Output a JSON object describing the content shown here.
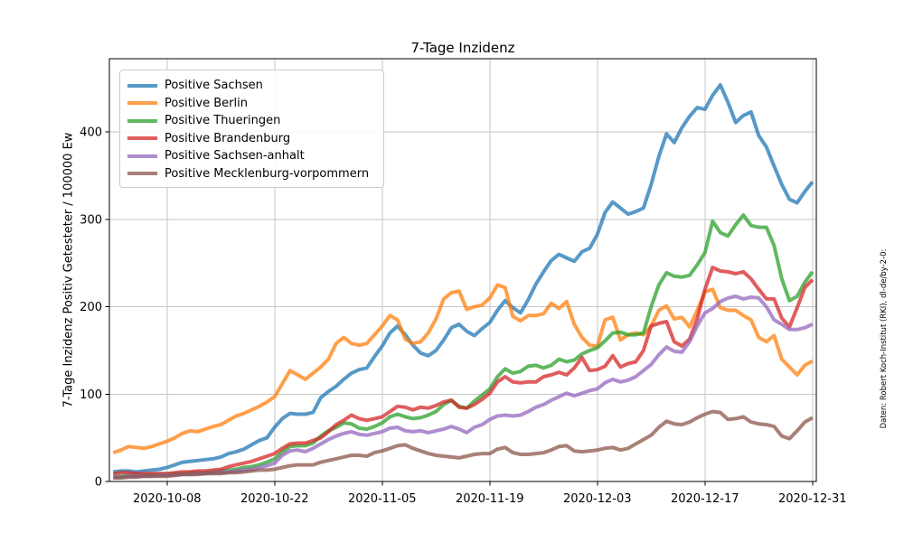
{
  "figure": {
    "title": "7-Tage Inzidenz",
    "ylabel": "7-Tage Inzidenz Positiv Getesteter / 100000 Ew",
    "watermark": "Daten: Robert Koch-Institut (RKI), dl-de/by-2-0:",
    "background_color": "#ffffff",
    "grid_color": "#c6c6c6",
    "spine_color": "#000000"
  },
  "chart_data": {
    "type": "line",
    "title": "7-Tage Inzidenz",
    "xlabel": "",
    "ylabel": "7-Tage Inzidenz Positiv Getesteter / 100000 Ew",
    "x_unit": "day",
    "x_start_date": "2020-10-01",
    "x_tick_days": [
      7,
      21,
      35,
      49,
      63,
      77,
      91
    ],
    "x_tick_labels": [
      "2020-10-08",
      "2020-10-22",
      "2020-11-05",
      "2020-11-19",
      "2020-12-03",
      "2020-12-17",
      "2020-12-31"
    ],
    "y_ticks": [
      0,
      100,
      200,
      300,
      400
    ],
    "ylim": [
      0,
      484
    ],
    "xlim_days": [
      -0.5,
      91.5
    ],
    "grid": true,
    "legend_position": "upper left",
    "line_width": 4,
    "line_alpha": 0.75,
    "series": [
      {
        "name": "Positive Sachsen",
        "color": "#1f77b4",
        "values": [
          11,
          12,
          12,
          11,
          12,
          13,
          14,
          16,
          19,
          22,
          23,
          24,
          25,
          26,
          28,
          32,
          34,
          37,
          42,
          47,
          50,
          62,
          72,
          78,
          77,
          77,
          79,
          96,
          103,
          109,
          117,
          124,
          128,
          130,
          143,
          155,
          170,
          178,
          168,
          156,
          147,
          144,
          150,
          162,
          176,
          180,
          172,
          167,
          175,
          182,
          196,
          207,
          199,
          193,
          208,
          226,
          240,
          253,
          260,
          256,
          252,
          263,
          267,
          283,
          308,
          320,
          313,
          306,
          309,
          313,
          340,
          372,
          398,
          388,
          405,
          418,
          428,
          426,
          442,
          454,
          434,
          411,
          419,
          423,
          396,
          383,
          361,
          340,
          323,
          319,
          332,
          343
        ]
      },
      {
        "name": "Positive Berlin",
        "color": "#ff7f0e",
        "values": [
          33,
          36,
          40,
          39,
          38,
          40,
          43,
          46,
          50,
          55,
          58,
          57,
          60,
          63,
          65,
          70,
          75,
          78,
          82,
          86,
          91,
          97,
          112,
          127,
          122,
          117,
          124,
          131,
          140,
          158,
          165,
          158,
          156,
          158,
          168,
          178,
          190,
          185,
          163,
          158,
          160,
          170,
          186,
          209,
          216,
          218,
          197,
          200,
          202,
          210,
          225,
          222,
          189,
          184,
          190,
          190,
          192,
          204,
          198,
          206,
          180,
          165,
          156,
          155,
          185,
          188,
          162,
          168,
          170,
          168,
          178,
          196,
          201,
          186,
          188,
          177,
          196,
          217,
          220,
          199,
          196,
          196,
          190,
          185,
          165,
          160,
          167,
          140,
          131,
          122,
          133,
          138
        ]
      },
      {
        "name": "Positive Thueringen",
        "color": "#2ca02c",
        "values": [
          6,
          6,
          7,
          7,
          7,
          8,
          8,
          8,
          9,
          9,
          10,
          10,
          10,
          11,
          12,
          13,
          14,
          16,
          17,
          19,
          22,
          26,
          34,
          40,
          41,
          41,
          44,
          52,
          58,
          62,
          67,
          66,
          61,
          60,
          63,
          67,
          74,
          77,
          74,
          72,
          73,
          76,
          80,
          88,
          93,
          86,
          84,
          92,
          99,
          106,
          120,
          129,
          124,
          126,
          132,
          133,
          130,
          133,
          140,
          137,
          139,
          146,
          150,
          153,
          161,
          170,
          171,
          168,
          168,
          170,
          200,
          225,
          239,
          235,
          234,
          236,
          248,
          262,
          298,
          285,
          281,
          294,
          305,
          293,
          291,
          291,
          270,
          232,
          207,
          212,
          228,
          240
        ]
      },
      {
        "name": "Positive Brandenburg",
        "color": "#d62728",
        "values": [
          9,
          10,
          10,
          9,
          9,
          9,
          9,
          9,
          10,
          11,
          11,
          12,
          12,
          13,
          14,
          17,
          19,
          21,
          23,
          26,
          29,
          32,
          38,
          43,
          44,
          44,
          47,
          50,
          57,
          65,
          70,
          76,
          72,
          70,
          72,
          74,
          80,
          86,
          85,
          82,
          85,
          84,
          87,
          91,
          93,
          85,
          84,
          88,
          94,
          101,
          114,
          120,
          114,
          113,
          114,
          114,
          120,
          122,
          125,
          122,
          130,
          142,
          127,
          128,
          132,
          144,
          131,
          135,
          137,
          150,
          178,
          181,
          183,
          160,
          155,
          163,
          186,
          220,
          245,
          241,
          240,
          238,
          240,
          232,
          220,
          209,
          209,
          187,
          177,
          199,
          222,
          231
        ]
      },
      {
        "name": "Positive Sachsen-anhalt",
        "color": "#9467bd",
        "values": [
          5,
          5,
          6,
          6,
          6,
          6,
          7,
          7,
          7,
          8,
          8,
          9,
          9,
          10,
          10,
          11,
          12,
          13,
          14,
          16,
          18,
          21,
          30,
          35,
          36,
          34,
          38,
          43,
          48,
          52,
          55,
          57,
          54,
          53,
          55,
          57,
          61,
          62,
          58,
          57,
          58,
          56,
          58,
          60,
          63,
          60,
          56,
          62,
          65,
          71,
          75,
          76,
          75,
          76,
          80,
          85,
          88,
          93,
          97,
          101,
          98,
          101,
          104,
          106,
          113,
          117,
          114,
          116,
          120,
          127,
          134,
          145,
          154,
          149,
          148,
          160,
          178,
          193,
          198,
          206,
          210,
          212,
          209,
          211,
          210,
          200,
          185,
          180,
          174,
          174,
          176,
          180
        ]
      },
      {
        "name": "Positive Mecklenburg-vorpommern",
        "color": "#8c564b",
        "values": [
          4,
          4,
          5,
          5,
          6,
          6,
          6,
          6,
          7,
          8,
          8,
          8,
          9,
          9,
          9,
          10,
          10,
          11,
          12,
          13,
          13,
          14,
          16,
          18,
          19,
          19,
          19,
          22,
          24,
          26,
          28,
          30,
          30,
          29,
          33,
          35,
          38,
          41,
          42,
          38,
          35,
          32,
          30,
          29,
          28,
          27,
          29,
          31,
          32,
          32,
          37,
          39,
          33,
          31,
          31,
          32,
          33,
          36,
          40,
          41,
          35,
          34,
          35,
          36,
          38,
          39,
          36,
          38,
          43,
          48,
          53,
          62,
          69,
          66,
          65,
          68,
          73,
          77,
          80,
          79,
          71,
          72,
          74,
          68,
          66,
          65,
          63,
          52,
          49,
          58,
          68,
          73
        ]
      }
    ]
  }
}
